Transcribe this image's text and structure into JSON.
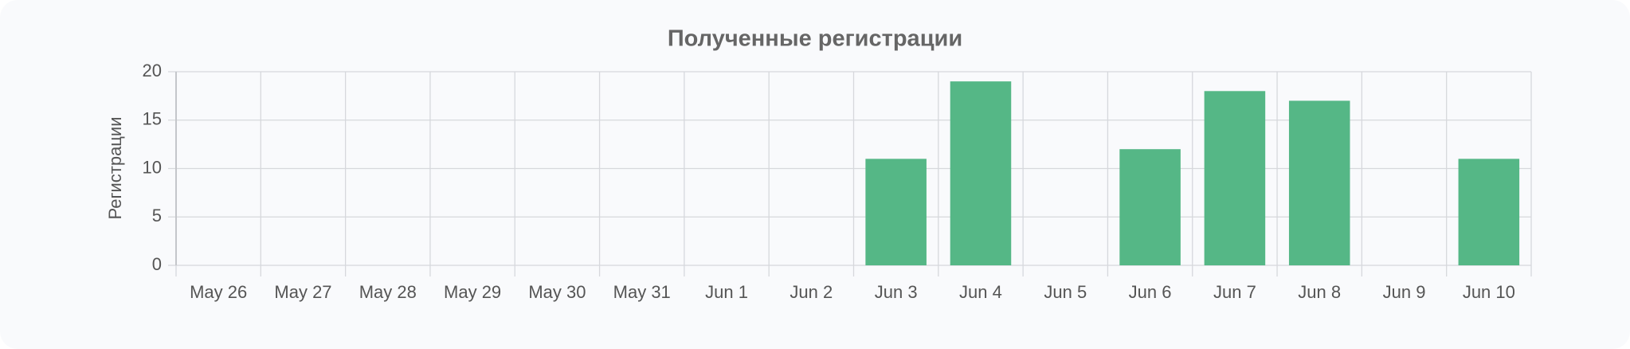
{
  "chart_data": {
    "type": "bar",
    "title": "Полученные регистрации",
    "y_label": "Регистрации",
    "categories": [
      "May 26",
      "May 27",
      "May 28",
      "May 29",
      "May 30",
      "May 31",
      "Jun 1",
      "Jun 2",
      "Jun 3",
      "Jun 4",
      "Jun 5",
      "Jun 6",
      "Jun 7",
      "Jun 8",
      "Jun 9",
      "Jun 10"
    ],
    "values": [
      0,
      0,
      0,
      0,
      0,
      0,
      0,
      0,
      11,
      19,
      0,
      12,
      18,
      17,
      0,
      11
    ],
    "color": "#55b786",
    "ylim": [
      0,
      20
    ],
    "yticks": [
      0,
      5,
      10,
      15,
      20
    ],
    "grid": true
  }
}
